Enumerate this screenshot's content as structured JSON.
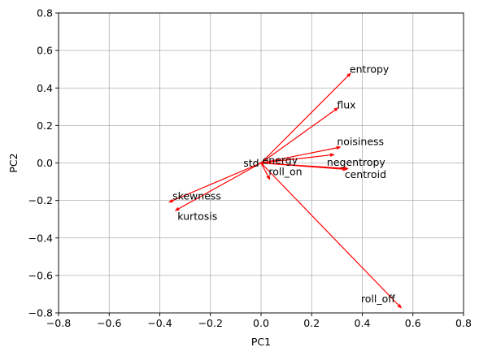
{
  "chart_data": {
    "type": "vector",
    "title": "",
    "xlabel": "PC1",
    "ylabel": "PC2",
    "xlim": [
      -0.8,
      0.8
    ],
    "ylim": [
      -0.8,
      0.8
    ],
    "xticks": [
      -0.8,
      -0.6,
      -0.4,
      -0.2,
      0.0,
      0.2,
      0.4,
      0.6,
      0.8
    ],
    "yticks": [
      -0.8,
      -0.6,
      -0.4,
      -0.2,
      0.0,
      0.2,
      0.4,
      0.6,
      0.8
    ],
    "xtick_labels": [
      "−0.8",
      "−0.6",
      "−0.4",
      "−0.2",
      "0.0",
      "0.2",
      "0.4",
      "0.6",
      "0.8"
    ],
    "ytick_labels": [
      "−0.8",
      "−0.6",
      "−0.4",
      "−0.2",
      "0.0",
      "0.2",
      "0.4",
      "0.6",
      "0.8"
    ],
    "grid": true,
    "arrow_color": "#ff0000",
    "vectors": [
      {
        "label": "entropy",
        "x": 0.355,
        "y": 0.48,
        "label_x": 0.35,
        "label_y": 0.5
      },
      {
        "label": "flux",
        "x": 0.305,
        "y": 0.295,
        "label_x": 0.3,
        "label_y": 0.31
      },
      {
        "label": "noisiness",
        "x": 0.315,
        "y": 0.085,
        "label_x": 0.3,
        "label_y": 0.115
      },
      {
        "label": "energy",
        "x": 0.29,
        "y": 0.045,
        "label_x": 0.005,
        "label_y": 0.015
      },
      {
        "label": "negentropy",
        "x": 0.345,
        "y": -0.03,
        "label_x": 0.26,
        "label_y": 0.005
      },
      {
        "label": "centroid",
        "x": 0.34,
        "y": -0.035,
        "label_x": 0.33,
        "label_y": -0.06
      },
      {
        "label": "std",
        "x": -0.005,
        "y": 0.003,
        "label_x": -0.07,
        "label_y": 0.0
      },
      {
        "label": "roll_on",
        "x": 0.035,
        "y": -0.09,
        "label_x": 0.03,
        "label_y": -0.045
      },
      {
        "label": "skewness",
        "x": -0.365,
        "y": -0.21,
        "label_x": -0.35,
        "label_y": -0.175
      },
      {
        "label": "kurtosis",
        "x": -0.34,
        "y": -0.255,
        "label_x": -0.33,
        "label_y": -0.285
      },
      {
        "label": "roll_off",
        "x": 0.555,
        "y": -0.775,
        "label_x": 0.395,
        "label_y": -0.725
      }
    ]
  }
}
